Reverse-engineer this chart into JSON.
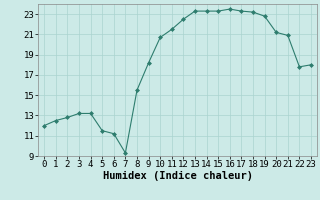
{
  "x": [
    0,
    1,
    2,
    3,
    4,
    5,
    6,
    7,
    8,
    9,
    10,
    11,
    12,
    13,
    14,
    15,
    16,
    17,
    18,
    19,
    20,
    21,
    22,
    23
  ],
  "y": [
    12.0,
    12.5,
    12.8,
    13.2,
    13.2,
    11.5,
    11.2,
    9.3,
    15.5,
    18.2,
    20.7,
    21.5,
    22.5,
    23.3,
    23.3,
    23.3,
    23.5,
    23.3,
    23.2,
    22.8,
    21.2,
    20.9,
    17.8,
    18.0
  ],
  "line_color": "#2e7d6e",
  "marker": "D",
  "marker_size": 2.0,
  "bg_color": "#cceae7",
  "grid_color": "#aad4d0",
  "xlabel": "Humidex (Indice chaleur)",
  "xlabel_fontsize": 7.5,
  "tick_fontsize": 6.5,
  "xlim": [
    -0.5,
    23.5
  ],
  "ylim": [
    9,
    24
  ],
  "yticks": [
    9,
    11,
    13,
    15,
    17,
    19,
    21,
    23
  ],
  "xticks": [
    0,
    1,
    2,
    3,
    4,
    5,
    6,
    7,
    8,
    9,
    10,
    11,
    12,
    13,
    14,
    15,
    16,
    17,
    18,
    19,
    20,
    21,
    22,
    23
  ]
}
